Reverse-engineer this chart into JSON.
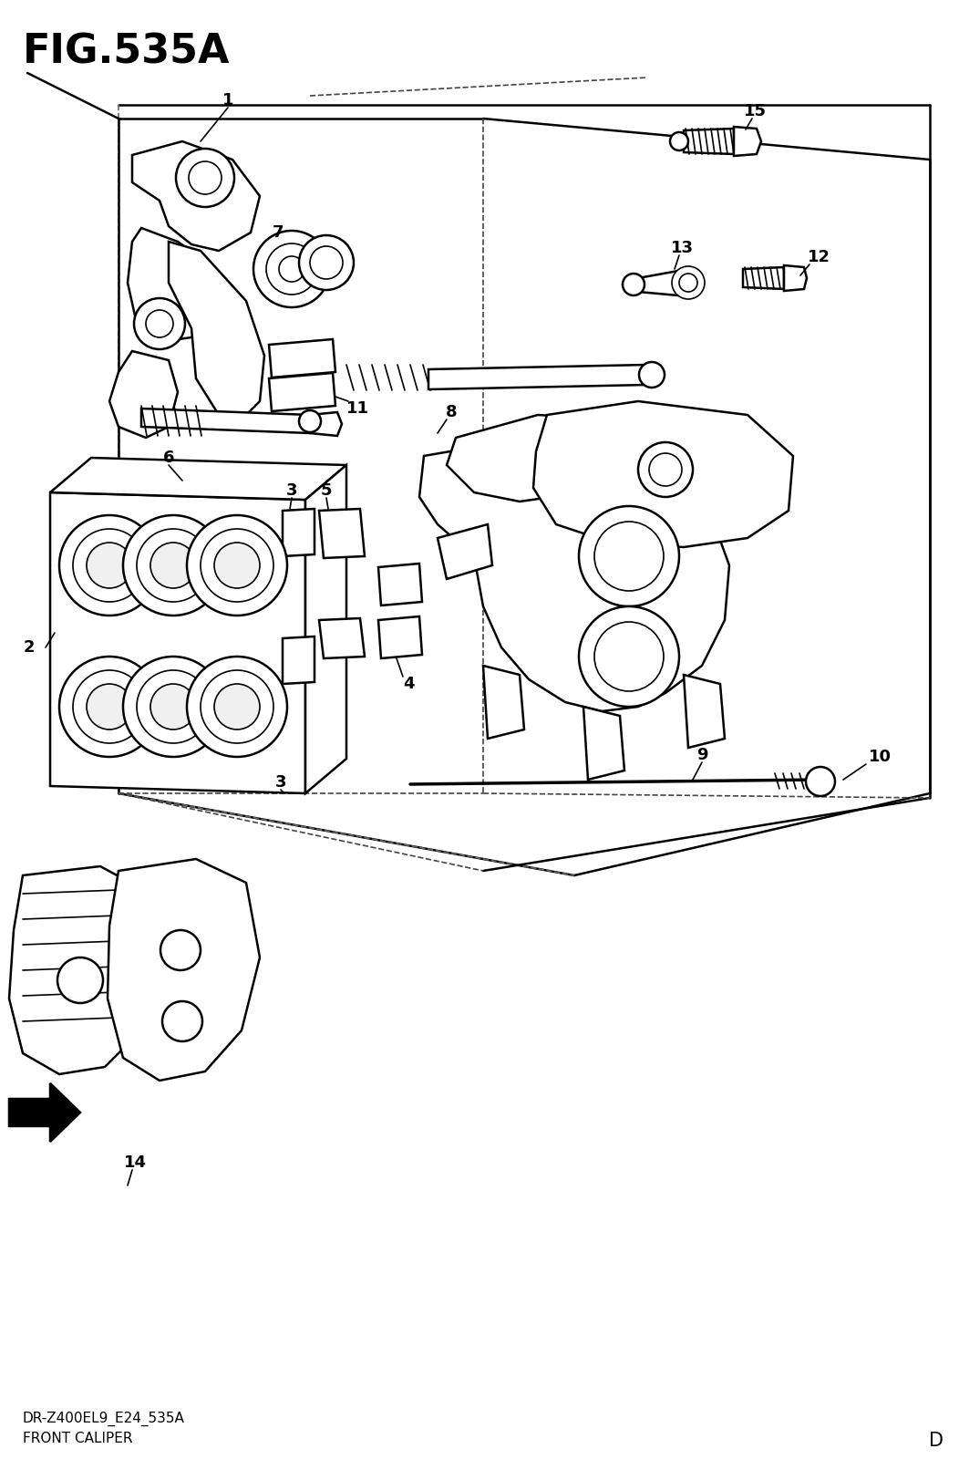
{
  "title": "FIG.535A",
  "subtitle1": "DR-Z400EL9_E24_535A",
  "subtitle2": "FRONT CALIPER",
  "corner_label": "D",
  "bg_color": "#ffffff",
  "line_color": "#000000",
  "title_fontsize": 32,
  "label_fontsize": 13,
  "small_fontsize": 11,
  "fig_width": 10.52,
  "fig_height": 16.0,
  "dpi": 100
}
